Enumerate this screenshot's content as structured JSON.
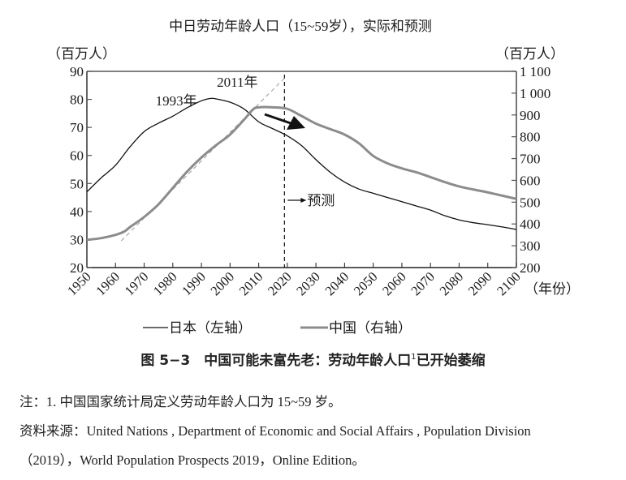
{
  "chart_data": {
    "type": "line",
    "title": "中日劳动年龄人口（15~59岁），实际和预测",
    "xlabel": "（年份）",
    "ylabel_left": "（百万人）",
    "ylabel_right": "（百万人）",
    "xlim": [
      1950,
      2100
    ],
    "ylim_left": [
      20,
      90
    ],
    "ylim_right": [
      200,
      1100
    ],
    "x_ticks": [
      "1950",
      "1960",
      "1970",
      "1980",
      "1990",
      "2000",
      "2010",
      "2020",
      "2030",
      "2040",
      "2050",
      "2060",
      "2070",
      "2080",
      "2090",
      "2100"
    ],
    "y_ticks_left": [
      "20",
      "30",
      "40",
      "50",
      "60",
      "70",
      "80",
      "90"
    ],
    "y_ticks_right": [
      "200",
      "300",
      "400",
      "500",
      "600",
      "700",
      "800",
      "900",
      "1 000",
      "1 100"
    ],
    "grid": false,
    "legend_position": "bottom",
    "series": [
      {
        "name": "日本（左轴）",
        "axis": "left",
        "color": "#111111",
        "x": [
          1950,
          1955,
          1960,
          1965,
          1970,
          1975,
          1980,
          1985,
          1990,
          1993,
          1995,
          2000,
          2005,
          2010,
          2015,
          2020,
          2025,
          2030,
          2035,
          2040,
          2045,
          2050,
          2055,
          2060,
          2065,
          2070,
          2075,
          2080,
          2085,
          2090,
          2095,
          2100
        ],
        "values": [
          47,
          52,
          56.5,
          63,
          68.5,
          71.5,
          74,
          77,
          79.5,
          80.3,
          80.2,
          79,
          76.5,
          72,
          69.5,
          67,
          63.5,
          58.5,
          54,
          50.5,
          48,
          46.5,
          45,
          43.5,
          42,
          40.5,
          38.5,
          37,
          36,
          35.3,
          34.5,
          33.6
        ]
      },
      {
        "name": "中国（右轴）",
        "axis": "right",
        "color": "#8c8c8c",
        "x": [
          1950,
          1955,
          1960,
          1963,
          1965,
          1970,
          1975,
          1980,
          1985,
          1990,
          1995,
          2000,
          2005,
          2008,
          2010,
          2015,
          2020,
          2025,
          2030,
          2035,
          2040,
          2045,
          2050,
          2055,
          2060,
          2065,
          2070,
          2075,
          2080,
          2085,
          2090,
          2095,
          2100
        ],
        "values": [
          327,
          335,
          350,
          365,
          385,
          432,
          490,
          565,
          640,
          705,
          760,
          810,
          880,
          925,
          935,
          935,
          928,
          895,
          860,
          835,
          810,
          770,
          712,
          678,
          655,
          637,
          615,
          592,
          572,
          558,
          545,
          530,
          515
        ]
      }
    ],
    "annotations": [
      {
        "text": "1993年",
        "x": 1993
      },
      {
        "text": "2011年",
        "x": 2011
      },
      {
        "text": "预测",
        "x": 2019,
        "note": "vertical dashed line marks start of projection"
      }
    ],
    "reference_line": {
      "type": "trend",
      "style": "dashed",
      "from_year": 1962,
      "to_year": 2018
    },
    "forecast_start": 2019
  },
  "legend": {
    "japan": "日本（左轴）",
    "china": "中国（右轴）"
  },
  "caption": {
    "prefix": "图 5−3　中国可能未富先老：劳动年龄人口",
    "superscript": "1",
    "suffix": "已开始萎缩"
  },
  "notes": {
    "note1": "注：1. 中国国家统计局定义劳动年龄人口为 15~59 岁。",
    "source_line1": "资料来源：United Nations , Department of Economic and Social Affairs , Population Division",
    "source_line2": "（2019），World Population Prospects 2019，Online Edition。"
  }
}
